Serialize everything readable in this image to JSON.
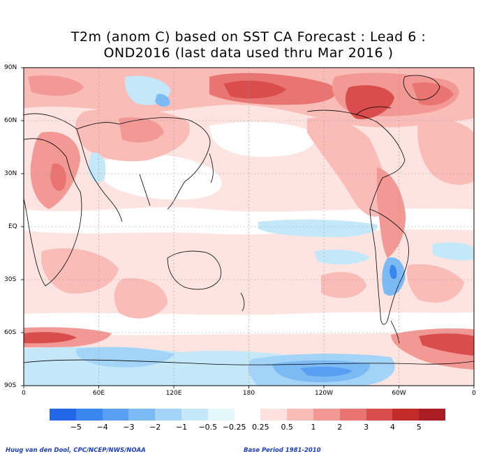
{
  "title": {
    "line1": "T2m (anom C) based on SST CA Forecast : Lead 6 :",
    "line2": "OND2016 (last data used thru Mar 2016 )"
  },
  "lat_labels": [
    "90N",
    "60N",
    "30N",
    "EQ",
    "30S",
    "60S",
    "90S"
  ],
  "lon_labels": [
    "0",
    "60E",
    "120E",
    "180",
    "120W",
    "60W",
    "0"
  ],
  "colorbar": {
    "labels": [
      "−5",
      "−4",
      "−3",
      "−2",
      "−1",
      "−0.5",
      "−0.25",
      "0.25",
      "0.5",
      "1",
      "2",
      "3",
      "4",
      "5"
    ],
    "colors": [
      "#2167e8",
      "#3a86ef",
      "#5aa0f2",
      "#7cbaf4",
      "#a3d4f7",
      "#c4e8f8",
      "#e4f7fb",
      "#ffffff",
      "#fde1df",
      "#f9bcb7",
      "#f39995",
      "#e97572",
      "#d94d4c",
      "#c32b2b",
      "#a81e22"
    ]
  },
  "credit": {
    "left": "Huug van den Dool, CPC/NCEP/NWS/NOAA",
    "right": "Base Period 1981-2010"
  }
}
